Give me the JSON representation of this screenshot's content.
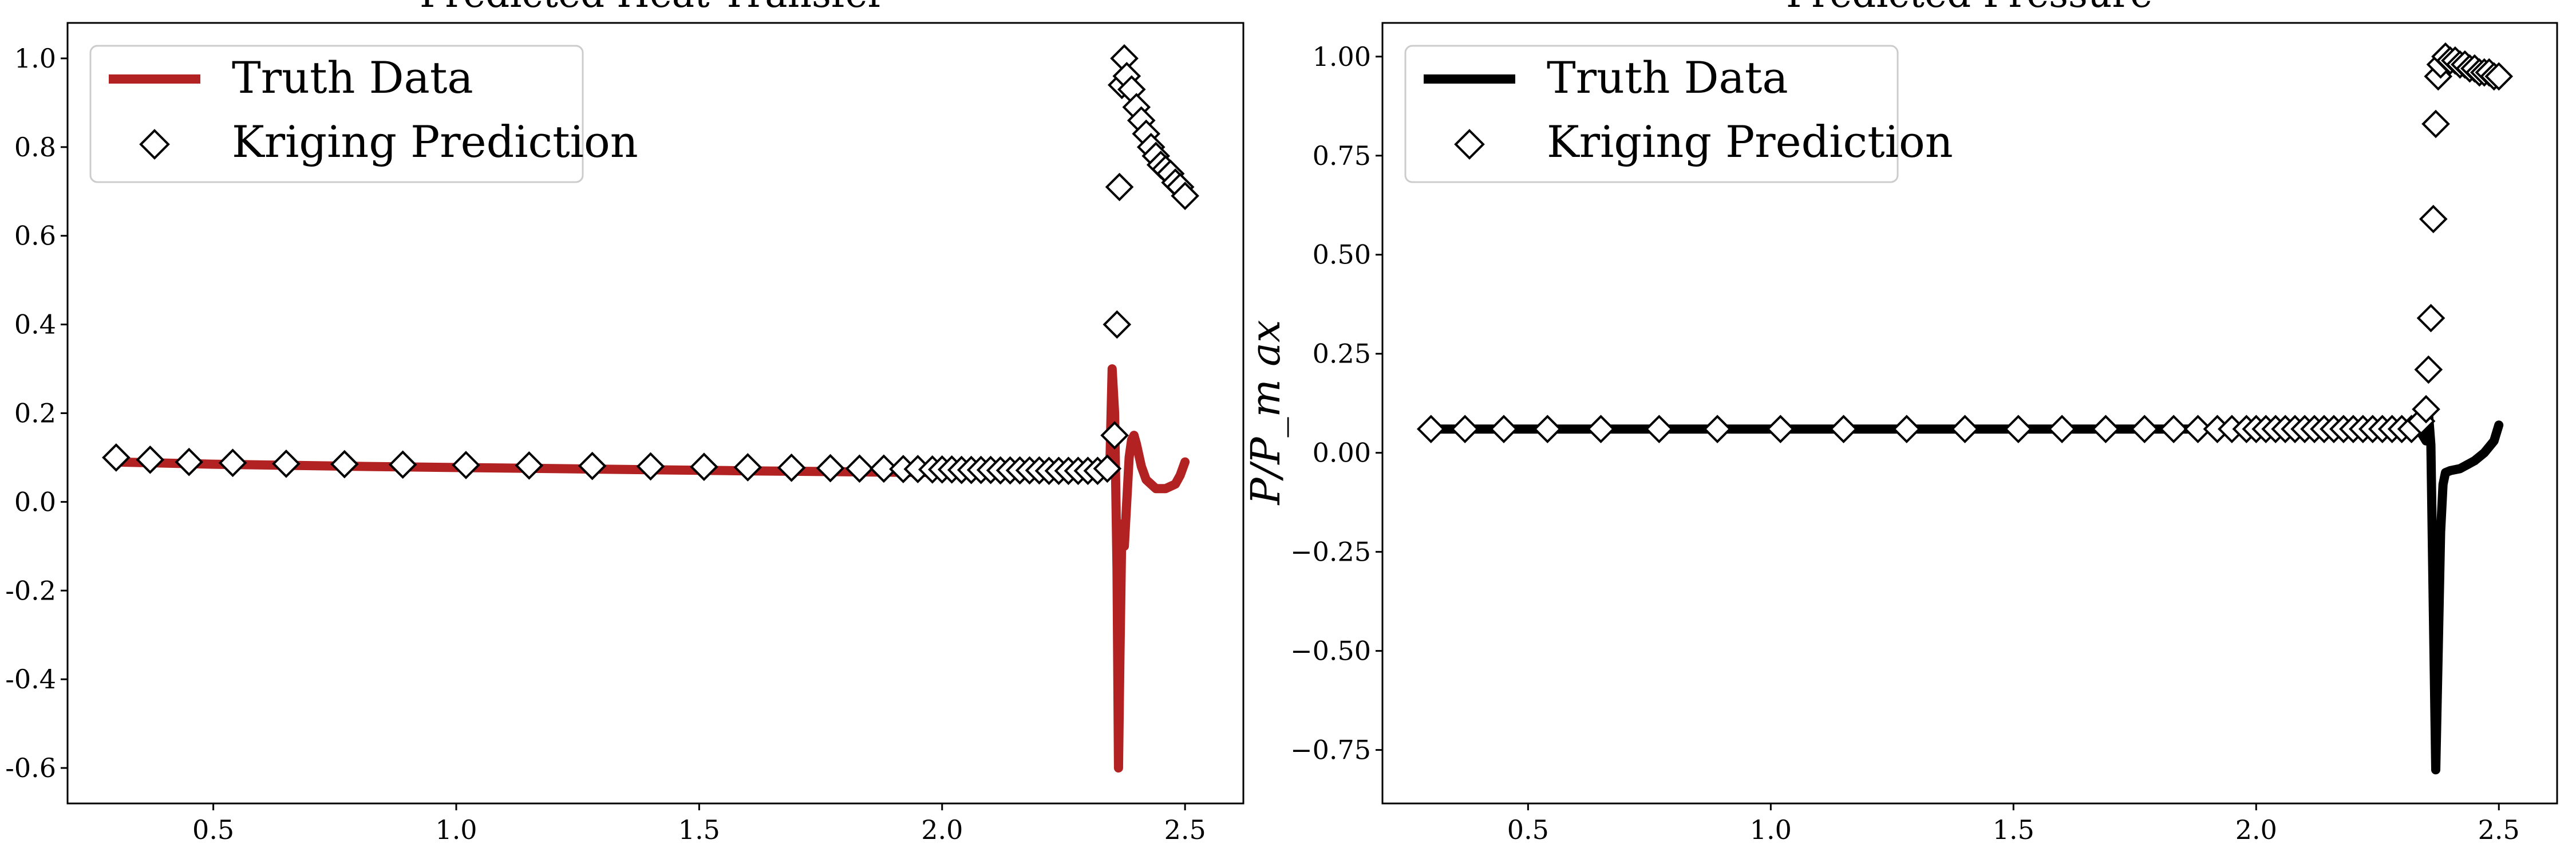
{
  "chart_data": [
    {
      "type": "line",
      "title": "Predicted Heat Transfer",
      "xlabel": "",
      "ylabel": "",
      "xlim": [
        0.2,
        2.62
      ],
      "ylim": [
        -0.68,
        1.08
      ],
      "xticks": [
        0.5,
        1.0,
        1.5,
        2.0,
        2.5
      ],
      "xtick_labels": [
        "0.5",
        "1.0",
        "1.5",
        "2.0",
        "2.5"
      ],
      "yticks": [
        -0.6,
        -0.4,
        -0.2,
        0.0,
        0.2,
        0.4,
        0.6,
        0.8,
        1.0
      ],
      "ytick_labels": [
        "-0.6",
        "-0.4",
        "-0.2",
        "0.0",
        "0.2",
        "0.4",
        "0.6",
        "0.8",
        "1.0"
      ],
      "grid": false,
      "legend_position": "top-left",
      "legend_entries": [
        "Truth Data",
        "Kriging Prediction"
      ],
      "series": [
        {
          "name": "Truth Data",
          "kind": "line",
          "color": "#b22222",
          "x": [
            0.3,
            0.5,
            0.8,
            1.2,
            1.6,
            2.0,
            2.3,
            2.345,
            2.35,
            2.355,
            2.36,
            2.363,
            2.366,
            2.37,
            2.375,
            2.38,
            2.385,
            2.39,
            2.395,
            2.4,
            2.41,
            2.42,
            2.44,
            2.46,
            2.48,
            2.49,
            2.5
          ],
          "y": [
            0.09,
            0.085,
            0.08,
            0.075,
            0.07,
            0.066,
            0.065,
            0.07,
            0.3,
            0.2,
            -0.15,
            -0.6,
            -0.35,
            -0.05,
            -0.1,
            0.0,
            0.1,
            0.14,
            0.15,
            0.13,
            0.08,
            0.05,
            0.03,
            0.03,
            0.04,
            0.06,
            0.09
          ]
        },
        {
          "name": "Kriging Prediction",
          "kind": "markers",
          "marker": "diamond",
          "x": [
            0.3,
            0.37,
            0.45,
            0.54,
            0.65,
            0.77,
            0.89,
            1.02,
            1.15,
            1.28,
            1.4,
            1.51,
            1.6,
            1.69,
            1.77,
            1.83,
            1.88,
            1.92,
            1.95,
            1.98,
            2.0,
            2.02,
            2.04,
            2.06,
            2.08,
            2.1,
            2.12,
            2.14,
            2.16,
            2.18,
            2.2,
            2.22,
            2.24,
            2.26,
            2.28,
            2.3,
            2.32,
            2.34,
            2.355,
            2.36,
            2.365,
            2.37,
            2.375,
            2.38,
            2.39,
            2.4,
            2.41,
            2.42,
            2.43,
            2.44,
            2.45,
            2.46,
            2.47,
            2.48,
            2.49,
            2.5
          ],
          "y": [
            0.1,
            0.095,
            0.09,
            0.088,
            0.086,
            0.085,
            0.084,
            0.083,
            0.082,
            0.081,
            0.08,
            0.079,
            0.078,
            0.077,
            0.076,
            0.075,
            0.075,
            0.074,
            0.074,
            0.073,
            0.073,
            0.073,
            0.072,
            0.072,
            0.072,
            0.072,
            0.071,
            0.071,
            0.071,
            0.071,
            0.071,
            0.07,
            0.07,
            0.07,
            0.07,
            0.07,
            0.07,
            0.075,
            0.15,
            0.4,
            0.71,
            0.94,
            1.0,
            0.96,
            0.93,
            0.89,
            0.86,
            0.83,
            0.8,
            0.78,
            0.76,
            0.75,
            0.74,
            0.72,
            0.71,
            0.69
          ]
        }
      ]
    },
    {
      "type": "line",
      "title": "Predicted Pressure",
      "xlabel": "",
      "ylabel": "P/P_max",
      "ylabel_display": "P/P_m ax",
      "xlim": [
        0.2,
        2.62
      ],
      "ylim": [
        -0.885,
        1.085
      ],
      "xticks": [
        0.5,
        1.0,
        1.5,
        2.0,
        2.5
      ],
      "xtick_labels": [
        "0.5",
        "1.0",
        "1.5",
        "2.0",
        "2.5"
      ],
      "yticks": [
        -0.75,
        -0.5,
        -0.25,
        0.0,
        0.25,
        0.5,
        0.75,
        1.0
      ],
      "ytick_labels": [
        "−0.75",
        "−0.50",
        "−0.25",
        "0.00",
        "0.25",
        "0.50",
        "0.75",
        "1.00"
      ],
      "grid": false,
      "legend_position": "top-left",
      "legend_entries": [
        "Truth Data",
        "Kriging Prediction"
      ],
      "series": [
        {
          "name": "Truth Data",
          "kind": "line",
          "color": "#000000",
          "x": [
            0.3,
            1.0,
            1.5,
            2.0,
            2.3,
            2.34,
            2.35,
            2.355,
            2.36,
            2.365,
            2.37,
            2.375,
            2.38,
            2.385,
            2.39,
            2.4,
            2.42,
            2.45,
            2.47,
            2.49,
            2.5
          ],
          "y": [
            0.06,
            0.06,
            0.06,
            0.06,
            0.06,
            0.05,
            0.03,
            0.1,
            0.02,
            -0.4,
            -0.8,
            -0.5,
            -0.2,
            -0.08,
            -0.05,
            -0.045,
            -0.04,
            -0.02,
            0.0,
            0.03,
            0.07
          ]
        },
        {
          "name": "Kriging Prediction",
          "kind": "markers",
          "marker": "diamond",
          "x": [
            0.3,
            0.37,
            0.45,
            0.54,
            0.65,
            0.77,
            0.89,
            1.02,
            1.15,
            1.28,
            1.4,
            1.51,
            1.6,
            1.69,
            1.77,
            1.83,
            1.88,
            1.92,
            1.95,
            1.98,
            2.0,
            2.02,
            2.04,
            2.06,
            2.08,
            2.1,
            2.12,
            2.14,
            2.16,
            2.18,
            2.2,
            2.22,
            2.24,
            2.26,
            2.28,
            2.3,
            2.32,
            2.34,
            2.35,
            2.355,
            2.36,
            2.365,
            2.37,
            2.375,
            2.38,
            2.39,
            2.4,
            2.41,
            2.42,
            2.43,
            2.44,
            2.45,
            2.46,
            2.47,
            2.48,
            2.49,
            2.5
          ],
          "y": [
            0.06,
            0.06,
            0.06,
            0.06,
            0.06,
            0.06,
            0.06,
            0.06,
            0.06,
            0.06,
            0.06,
            0.06,
            0.06,
            0.06,
            0.06,
            0.06,
            0.06,
            0.06,
            0.06,
            0.06,
            0.06,
            0.06,
            0.06,
            0.06,
            0.06,
            0.06,
            0.06,
            0.06,
            0.06,
            0.06,
            0.06,
            0.06,
            0.06,
            0.06,
            0.06,
            0.06,
            0.06,
            0.08,
            0.11,
            0.21,
            0.34,
            0.59,
            0.83,
            0.95,
            0.98,
            1.0,
            0.99,
            0.99,
            0.98,
            0.98,
            0.97,
            0.97,
            0.96,
            0.96,
            0.96,
            0.95,
            0.95
          ]
        }
      ]
    }
  ]
}
